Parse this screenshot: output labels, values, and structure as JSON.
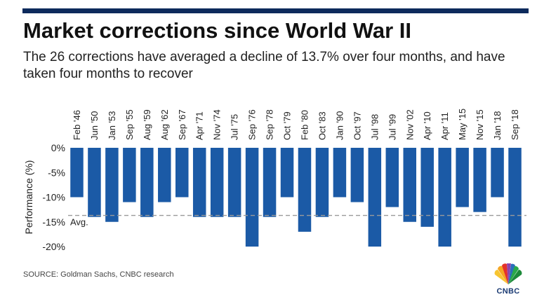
{
  "title": "Market corrections since World War II",
  "subtitle": "The 26 corrections have averaged a decline of 13.7% over four months, and have taken four months to recover",
  "source": "SOURCE: Goldman Sachs, CNBC research",
  "logo_text": "CNBC",
  "colors": {
    "bar": "#1b5aa6",
    "top_bar": "#0d2a5c",
    "average_line": "#9a9a9a",
    "text": "#222222",
    "logo_text": "#1a3a73"
  },
  "chart_data": {
    "type": "bar",
    "orientation": "vertical-negative",
    "categories": [
      "Feb '46",
      "Jun '50",
      "Jan '53",
      "Sep '55",
      "Aug '59",
      "Aug '62",
      "Sep '67",
      "Apr '71",
      "Nov '74",
      "Jul '75",
      "Sep '76",
      "Sep '78",
      "Oct '79",
      "Feb '80",
      "Oct '83",
      "Jan '90",
      "Oct '97",
      "Jul '98",
      "Jul '99",
      "Nov '02",
      "Apr '10",
      "Apr '11",
      "May '15",
      "Nov '15",
      "Jan '18",
      "Sep '18"
    ],
    "values": [
      -10,
      -14,
      -15,
      -11,
      -14,
      -11,
      -10,
      -14,
      -14,
      -14,
      -20,
      -14,
      -10,
      -17,
      -14,
      -10,
      -11,
      -20,
      -12,
      -15,
      -16,
      -20,
      -12,
      -13,
      -10,
      -20
    ],
    "ylabel": "Performance (%)",
    "ylim": [
      -20,
      0
    ],
    "yticks": [
      0,
      -5,
      -10,
      -15,
      -20
    ],
    "ytick_labels": [
      "0%",
      "-5%",
      "-10%",
      "-15%",
      "-20%"
    ],
    "average": -13.7,
    "average_label": "Avg.",
    "grid": false
  }
}
